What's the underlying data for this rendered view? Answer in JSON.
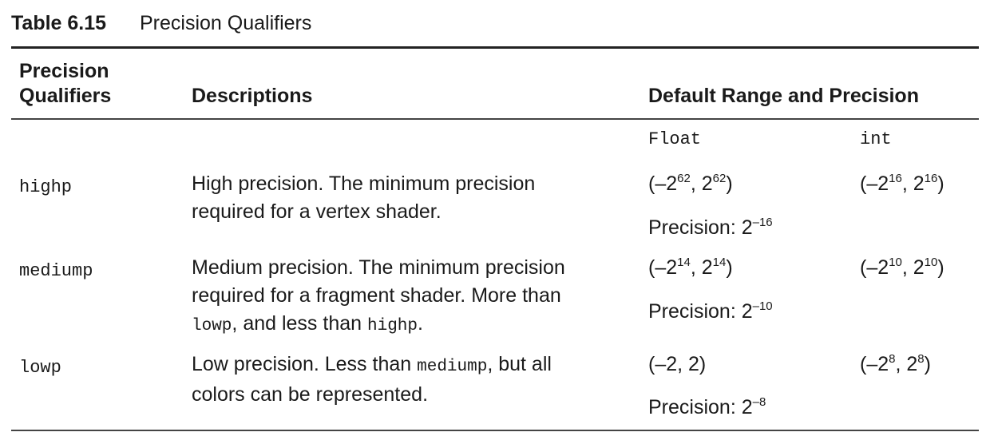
{
  "caption": {
    "label": "Table 6.15",
    "title": "Precision Qualifiers"
  },
  "headers": {
    "qualifiers_line1": "Precision",
    "qualifiers_line2": "Qualifiers",
    "descriptions": "Descriptions",
    "range": "Default Range and Precision"
  },
  "subheaders": {
    "float": "Float",
    "int": "int"
  },
  "rows": [
    {
      "qualifier": "highp",
      "desc_line1": "High precision. The minimum precision",
      "desc_line2": "required for a vertex shader.",
      "float_range": {
        "open": "(–2",
        "exp1": "62",
        "mid": ", 2",
        "exp2": "62",
        "close": ")"
      },
      "precision": {
        "label": "Precision: 2",
        "exp": "–16"
      },
      "int_range": {
        "open": "(–2",
        "exp1": "16",
        "mid": ", 2",
        "exp2": "16",
        "close": ")"
      }
    },
    {
      "qualifier": "mediump",
      "desc_line1": "Medium precision. The minimum precision",
      "desc_line2": "required for a fragment shader. More than",
      "desc_line3_code1": "lowp",
      "desc_line3_text": ", and less than ",
      "desc_line3_code2": "highp",
      "desc_line3_end": ".",
      "float_range": {
        "open": "(–2",
        "exp1": "14",
        "mid": ", 2",
        "exp2": "14",
        "close": ")"
      },
      "precision": {
        "label": "Precision: 2",
        "exp": "–10"
      },
      "int_range": {
        "open": "(–2",
        "exp1": "10",
        "mid": ", 2",
        "exp2": "10",
        "close": ")"
      }
    },
    {
      "qualifier": "lowp",
      "desc_line1_text": "Low precision. Less than ",
      "desc_line1_code": "mediump",
      "desc_line1_end": ", but all",
      "desc_line2": "colors can be represented.",
      "float_range_text": "(–2, 2)",
      "precision": {
        "label": "Precision: 2",
        "exp": "–8"
      },
      "int_range": {
        "open": "(–2",
        "exp1": "8",
        "mid": ", 2",
        "exp2": "8",
        "close": ")"
      }
    }
  ]
}
